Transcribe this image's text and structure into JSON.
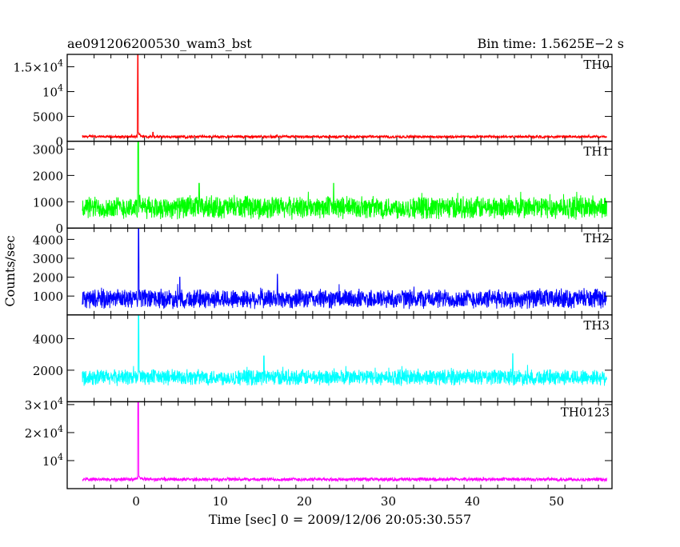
{
  "header": {
    "title": "ae091206200530_wam3_bst",
    "bin_time": "Bin time: 1.5625E−2 s"
  },
  "chart_data": {
    "type": "line",
    "xlabel": "Time [sec] 0 = 2009/12/06 20:05:30.557",
    "ylabel": "Counts/sec",
    "xlim": [
      -8.2,
      56.6
    ],
    "x_ticks": [
      {
        "value": 0,
        "label": "0"
      },
      {
        "value": 10,
        "label": "10"
      },
      {
        "value": 20,
        "label": "20"
      },
      {
        "value": 30,
        "label": "30"
      },
      {
        "value": 40,
        "label": "40"
      },
      {
        "value": 50,
        "label": "50"
      }
    ],
    "data_range": [
      -6.4,
      56.0
    ],
    "bin_time": 0.015625,
    "grid": false,
    "panels": [
      {
        "name": "TH0",
        "color": "#ff0000",
        "ylim": [
          0,
          17500
        ],
        "y_ticks": [
          {
            "value": 0,
            "label": "0"
          },
          {
            "value": 5000,
            "label": "5000"
          },
          {
            "value": 10000,
            "label": "10",
            "exp": "4"
          },
          {
            "value": 15000,
            "label": "1.5×10",
            "exp": "4"
          }
        ],
        "baseline": 900,
        "noise": 300,
        "spike": {
          "x": 0.2,
          "peak": 17500
        },
        "bumps": [
          {
            "x": 2.0,
            "y": 1800
          }
        ]
      },
      {
        "name": "TH1",
        "color": "#00ff00",
        "ylim": [
          0,
          3300
        ],
        "y_ticks": [
          {
            "value": 0,
            "label": "0"
          },
          {
            "value": 1000,
            "label": "1000"
          },
          {
            "value": 2000,
            "label": "2000"
          },
          {
            "value": 3000,
            "label": "3000"
          }
        ],
        "baseline": 780,
        "noise": 470,
        "spike": {
          "x": 0.25,
          "peak": 3300
        },
        "bumps": [
          {
            "x": 7.5,
            "y": 1700
          },
          {
            "x": 23.5,
            "y": 1700
          }
        ]
      },
      {
        "name": "TH2",
        "color": "#0000ff",
        "ylim": [
          0,
          4600
        ],
        "y_ticks": [
          {
            "value": 1000,
            "label": "1000"
          },
          {
            "value": 2000,
            "label": "2000"
          },
          {
            "value": 3000,
            "label": "3000"
          },
          {
            "value": 4000,
            "label": "4000"
          }
        ],
        "baseline": 850,
        "noise": 560,
        "spike": {
          "x": 0.3,
          "peak": 4600
        },
        "bumps": [
          {
            "x": 16.8,
            "y": 2150
          },
          {
            "x": 5.2,
            "y": 2000
          }
        ]
      },
      {
        "name": "TH3",
        "color": "#00ffff",
        "ylim": [
          0,
          5500
        ],
        "y_ticks": [
          {
            "value": 2000,
            "label": "2000"
          },
          {
            "value": 4000,
            "label": "4000"
          }
        ],
        "baseline": 1550,
        "noise": 560,
        "spike": {
          "x": 0.3,
          "peak": 5500
        },
        "bumps": [
          {
            "x": 44.8,
            "y": 3050
          },
          {
            "x": 15.2,
            "y": 2900
          }
        ]
      },
      {
        "name": "TH0123",
        "color": "#ff00ff",
        "ylim": [
          0,
          31000
        ],
        "y_ticks": [
          {
            "value": 10000,
            "label": "10",
            "exp": "4"
          },
          {
            "value": 20000,
            "label": "2×10",
            "exp": "4"
          },
          {
            "value": 30000,
            "label": "3×10",
            "exp": "4"
          }
        ],
        "baseline": 3300,
        "noise": 700,
        "spike": {
          "x": 0.25,
          "peak": 31000
        },
        "bumps": []
      }
    ]
  }
}
